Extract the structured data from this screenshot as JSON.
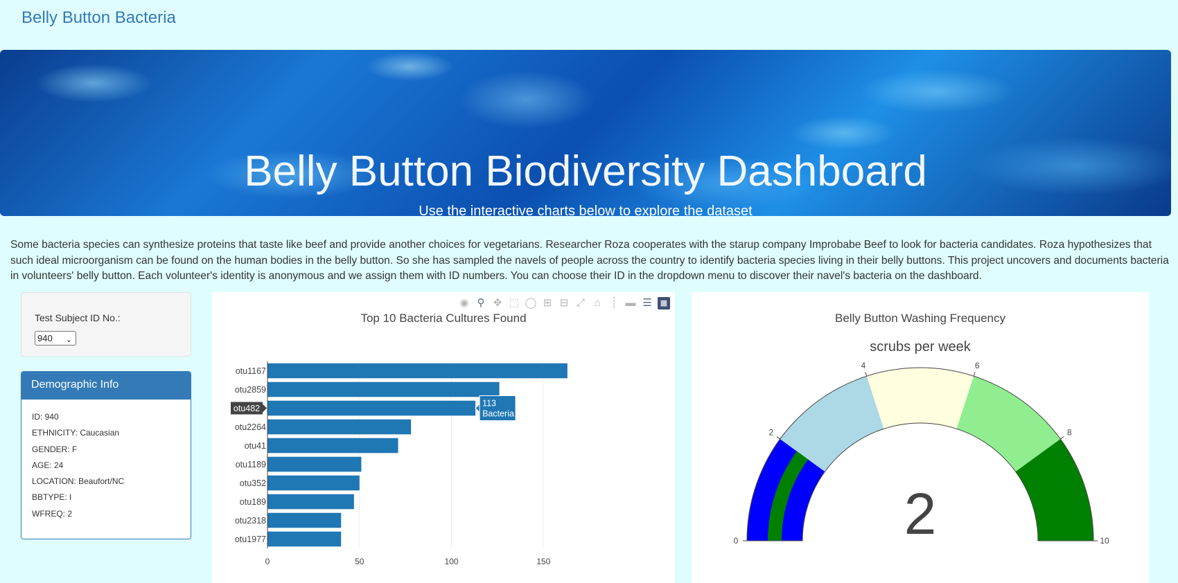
{
  "navbar": {
    "brand": "Belly Button Bacteria"
  },
  "jumbotron": {
    "title": "Belly Button Biodiversity Dashboard",
    "subtitle": "Use the interactive charts below to explore the dataset"
  },
  "intro": "Some bacteria species can synthesize proteins that taste like beef and provide another choices for vegetarians. Researcher Roza cooperates with the starup company Improbabe Beef to look for bacteria candidates. Roza hypothesizes that such ideal microorganism can be found on the human bodies in the belly button. So she has sampled the navels of people across the country to identify bacteria species living in their belly buttons. This project uncovers and documents bacteria in volunteers' belly button. Each volunteer's identity is anonymous and we assign them with ID numbers. You can choose their ID in the dropdown menu to discover their navel's bacteria on the dashboard.",
  "selector": {
    "label": "Test Subject ID No.:",
    "selected": "940"
  },
  "demographics": {
    "heading": "Demographic Info",
    "rows": [
      "ID: 940",
      "ETHNICITY: Caucasian",
      "GENDER: F",
      "AGE: 24",
      "LOCATION: Beaufort/NC",
      "BBTYPE: I",
      "WFREQ: 2"
    ]
  },
  "modebar_icons": [
    "camera-icon",
    "zoom-icon",
    "pan-icon",
    "box-select-icon",
    "lasso-icon",
    "zoom-in-icon",
    "zoom-out-icon",
    "autoscale-icon",
    "home-icon",
    "spike-lines-icon",
    "hover-closest-icon",
    "hover-compare-icon",
    "plotly-logo-icon"
  ],
  "colors": {
    "bar": "#1f77b4",
    "panel": "#337ab7",
    "background": "#dffdfd"
  },
  "chart_data": [
    {
      "type": "bar",
      "orientation": "horizontal",
      "title": "Top 10 Bacteria Cultures Found",
      "categories": [
        "otu1167",
        "otu2859",
        "otu482",
        "otu2264",
        "otu41",
        "otu1189",
        "otu352",
        "otu189",
        "otu2318",
        "otu1977"
      ],
      "values": [
        163,
        126,
        113,
        78,
        71,
        51,
        50,
        47,
        40,
        40
      ],
      "xlim": [
        0,
        180
      ],
      "xticks": [
        0,
        50,
        100,
        150
      ],
      "grid": true,
      "hover": {
        "category": "otu482",
        "value_label": "113",
        "text": "Bacteria"
      }
    },
    {
      "type": "gauge",
      "title": "Belly Button Washing Frequency",
      "subtitle": "scrubs per week",
      "value": 2,
      "range": [
        0,
        10
      ],
      "ticks": [
        0,
        2,
        4,
        6,
        8,
        10
      ],
      "steps": [
        {
          "range": [
            0,
            2
          ],
          "color": "#0000ff"
        },
        {
          "range": [
            2,
            4
          ],
          "color": "#add8e6"
        },
        {
          "range": [
            4,
            6
          ],
          "color": "#ffffe0"
        },
        {
          "range": [
            6,
            8
          ],
          "color": "#90ee90"
        },
        {
          "range": [
            8,
            10
          ],
          "color": "#008000"
        }
      ],
      "bar_color": "#008000"
    }
  ]
}
